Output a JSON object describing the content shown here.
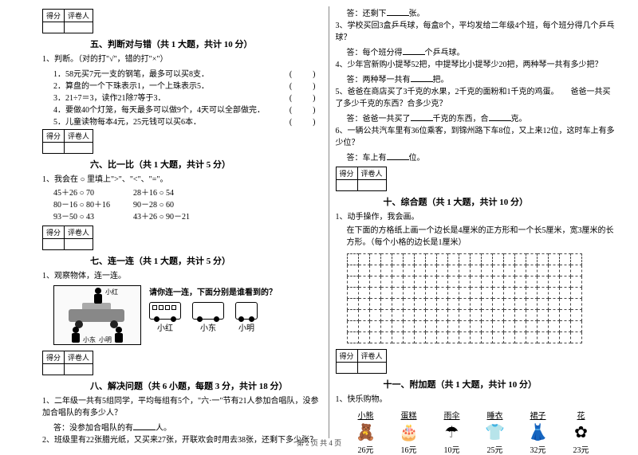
{
  "scorebox": {
    "score_label": "得分",
    "judge_label": "评卷人"
  },
  "sec5": {
    "title": "五、判断对与错（共 1 大题，共计 10 分）",
    "intro": "1、判断。（对的打\"√\"，错的打\"×\"）",
    "items": [
      "1．58元买7元一支的钢笔，最多可以买8支．",
      "2．算盘的一个下珠表示1，一个上珠表示5．",
      "3．21÷7＝3，读作21除7等于3．",
      "4．要做40个灯笼，每天最多可以做9个，4天可以全部做完．",
      "5．儿童读物每本4元，25元钱可以买6本．"
    ]
  },
  "sec6": {
    "title": "六、比一比（共 1 大题，共计 5 分）",
    "intro": "1、我会在 ○ 里填上\">\"、\"<\"、\"=\"。",
    "rows": [
      [
        "45＋26 ○ 70",
        "28＋16 ○ 54",
        ""
      ],
      [
        "80－16 ○ 80＋16",
        "90－28 ○ 60",
        ""
      ],
      [
        "93－50 ○ 43",
        "43＋26 ○ 90－21",
        ""
      ]
    ]
  },
  "sec7": {
    "title": "七、连一连（共 1 大题，共计 5 分）",
    "intro": "1、观察物体，连一连。",
    "views_title": "请你连一连，下面分别是谁看到的？",
    "kids": {
      "top": "小红",
      "bl": "小东",
      "br": "小明"
    },
    "view_names": [
      "小红",
      "小东",
      "小明"
    ]
  },
  "sec8": {
    "title": "八、解决问题（共 6 小题，每题 3 分，共计 18 分）",
    "q1": "1、二年级一共有5组同学，平均每组有5个，\"六·一\"节有21人参加合唱队，没参加合唱队的有多少人？",
    "a1_prefix": "答：没参加合唱队的有",
    "a1_suffix": "人。",
    "q2": "2、班级里有22张腊光纸，又买来27张，开联欢会时用去38张，还剩下多少张？",
    "a2_prefix": "答：还剩下",
    "a2_suffix": "张。",
    "q3": "3、学校买回3盒乒乓球，每盒8个，平均发给二年级4个班，每个班分得几个乒乓球？",
    "a3_prefix": "答：每个班分得",
    "a3_suffix": "个乒乓球。",
    "q4": "4、少年宫新购小提琴52把，中提琴比小提琴少20把，两种琴一共有多少把？",
    "a4_prefix": "答：两种琴一共有",
    "a4_suffix": "把。",
    "q5": "5、爸爸在商店买了3千克的水果，2千克的面粉和1千克的鸡蛋。　　爸爸一共买了多少千克的东西？合多少克？",
    "a5_prefix": "答：爸爸一共买了",
    "a5_mid": "千克的东西，合",
    "a5_suffix": "克。",
    "q6": "6、一辆公共汽车里有36位乘客，到锦州路下车8位，又上来12位，这时车上有多少位？",
    "a6_prefix": "答：车上有",
    "a6_suffix": "位。"
  },
  "sec10": {
    "title": "十、综合题（共 1 大题，共计 10 分）",
    "intro": "1、动手操作，我会画。",
    "desc": "在下面的方格纸上画一个边长是4厘米的正方形和一个长5厘米，宽3厘米的长方形。（每个小格的边长是1厘米）",
    "grid": {
      "rows": 8,
      "cols": 21
    }
  },
  "sec11": {
    "title": "十一、附加题（共 1 大题，共计 10 分）",
    "intro": "1、快乐购物。",
    "items": [
      {
        "name": "小熊",
        "icon": "🧸",
        "price": "26元"
      },
      {
        "name": "蛋糕",
        "icon": "🎂",
        "price": "16元"
      },
      {
        "name": "雨伞",
        "icon": "☂",
        "price": "10元"
      },
      {
        "name": "睡衣",
        "icon": "👕",
        "price": "25元"
      },
      {
        "name": "裙子",
        "icon": "👗",
        "price": "32元"
      },
      {
        "name": "花",
        "icon": "✿",
        "price": "23元"
      }
    ]
  },
  "footer": "第 2 页 共 4 页"
}
